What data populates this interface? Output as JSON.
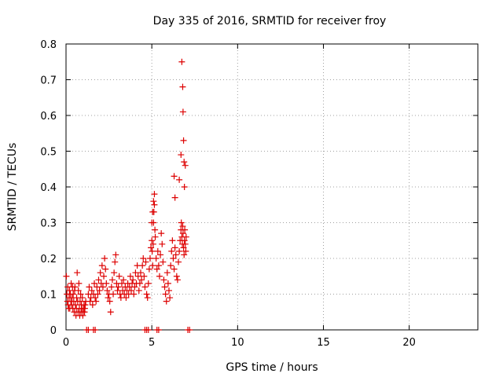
{
  "chart_data": {
    "type": "scatter",
    "title": "Day 335 of 2016, SRMTID for receiver froy",
    "xlabel": "GPS time / hours",
    "ylabel": "SRMTID / TECUs",
    "xlim": [
      0,
      24
    ],
    "ylim": [
      0,
      0.8
    ],
    "xticks": [
      0,
      5,
      10,
      15,
      20
    ],
    "yticks": [
      0,
      0.1,
      0.2,
      0.3,
      0.4,
      0.5,
      0.6,
      0.7,
      0.8
    ],
    "xtick_labels": [
      "0",
      "5",
      "10",
      "15",
      "20"
    ],
    "ytick_labels": [
      "0",
      "0.1",
      "0.2",
      "0.3",
      "0.4",
      "0.5",
      "0.6",
      "0.7",
      "0.8"
    ],
    "grid": true,
    "marker": "+",
    "color": "#dd0000",
    "series": [
      {
        "name": "SRMTID",
        "x": [
          0.02,
          0.05,
          0.08,
          0.1,
          0.12,
          0.15,
          0.18,
          0.2,
          0.22,
          0.25,
          0.28,
          0.3,
          0.33,
          0.35,
          0.38,
          0.4,
          0.42,
          0.45,
          0.48,
          0.5,
          0.52,
          0.55,
          0.58,
          0.6,
          0.62,
          0.65,
          0.68,
          0.7,
          0.72,
          0.75,
          0.78,
          0.8,
          0.82,
          0.85,
          0.88,
          0.9,
          0.92,
          0.95,
          0.98,
          1.0,
          1.02,
          1.05,
          1.08,
          1.1,
          1.12,
          1.15,
          1.3,
          1.35,
          1.4,
          1.45,
          1.5,
          1.55,
          1.6,
          1.65,
          1.7,
          1.75,
          1.8,
          1.85,
          1.9,
          1.95,
          2.0,
          2.05,
          2.1,
          2.15,
          2.2,
          2.25,
          2.3,
          2.35,
          2.4,
          2.45,
          2.5,
          2.55,
          2.6,
          2.65,
          2.7,
          2.75,
          2.8,
          2.85,
          2.9,
          2.95,
          3.0,
          3.05,
          3.1,
          3.15,
          3.2,
          3.25,
          3.3,
          3.35,
          3.4,
          3.45,
          3.5,
          3.55,
          3.6,
          3.65,
          3.7,
          3.75,
          3.8,
          3.85,
          3.9,
          3.95,
          4.0,
          4.05,
          4.1,
          4.15,
          4.2,
          4.25,
          4.3,
          4.35,
          4.4,
          4.45,
          4.5,
          4.55,
          4.6,
          4.65,
          4.7,
          4.75,
          4.8,
          4.85,
          4.9,
          4.95,
          5.0,
          5.02,
          5.05,
          5.08,
          5.1,
          5.12,
          5.15,
          5.18,
          5.2,
          5.25,
          5.3,
          5.35,
          5.4,
          5.45,
          5.5,
          5.55,
          5.6,
          5.65,
          5.7,
          5.75,
          5.8,
          5.85,
          5.9,
          5.95,
          6.0,
          6.05,
          6.1,
          6.15,
          6.2,
          6.25,
          6.3,
          6.35,
          6.4,
          6.45,
          6.5,
          6.55,
          6.6,
          6.65,
          6.7,
          6.72,
          6.75,
          6.78,
          6.8,
          6.82,
          6.85,
          6.88,
          6.9,
          6.92,
          6.95,
          6.98,
          7.0,
          5.0,
          5.05,
          5.1,
          5.15,
          6.3,
          6.35,
          6.6,
          6.7,
          6.75,
          6.8,
          6.82,
          6.85,
          6.88,
          6.9,
          6.95,
          1.2,
          1.3,
          1.6,
          1.7,
          4.6,
          4.7,
          4.8,
          5.3,
          5.4,
          7.1,
          7.2
        ],
        "y": [
          0.15,
          0.1,
          0.08,
          0.12,
          0.07,
          0.06,
          0.09,
          0.11,
          0.06,
          0.1,
          0.08,
          0.13,
          0.07,
          0.09,
          0.12,
          0.06,
          0.1,
          0.08,
          0.05,
          0.11,
          0.12,
          0.07,
          0.04,
          0.06,
          0.09,
          0.16,
          0.08,
          0.05,
          0.11,
          0.13,
          0.06,
          0.04,
          0.08,
          0.1,
          0.05,
          0.07,
          0.06,
          0.09,
          0.04,
          0.05,
          0.06,
          0.07,
          0.05,
          0.06,
          0.07,
          0.08,
          0.1,
          0.12,
          0.08,
          0.09,
          0.11,
          0.07,
          0.1,
          0.13,
          0.09,
          0.08,
          0.12,
          0.1,
          0.14,
          0.11,
          0.16,
          0.13,
          0.18,
          0.12,
          0.15,
          0.2,
          0.17,
          0.13,
          0.11,
          0.09,
          0.1,
          0.08,
          0.05,
          0.12,
          0.14,
          0.1,
          0.16,
          0.19,
          0.21,
          0.13,
          0.11,
          0.12,
          0.15,
          0.1,
          0.09,
          0.13,
          0.11,
          0.14,
          0.1,
          0.12,
          0.09,
          0.11,
          0.13,
          0.1,
          0.12,
          0.15,
          0.11,
          0.13,
          0.14,
          0.1,
          0.12,
          0.16,
          0.13,
          0.18,
          0.15,
          0.11,
          0.13,
          0.16,
          0.14,
          0.18,
          0.2,
          0.15,
          0.12,
          0.19,
          0.1,
          0.09,
          0.13,
          0.17,
          0.2,
          0.23,
          0.25,
          0.22,
          0.18,
          0.24,
          0.3,
          0.33,
          0.35,
          0.28,
          0.26,
          0.2,
          0.17,
          0.22,
          0.18,
          0.15,
          0.21,
          0.27,
          0.24,
          0.19,
          0.14,
          0.12,
          0.1,
          0.08,
          0.16,
          0.13,
          0.11,
          0.09,
          0.18,
          0.22,
          0.25,
          0.2,
          0.17,
          0.23,
          0.21,
          0.15,
          0.14,
          0.19,
          0.22,
          0.25,
          0.28,
          0.3,
          0.26,
          0.24,
          0.29,
          0.27,
          0.23,
          0.21,
          0.25,
          0.28,
          0.24,
          0.22,
          0.26,
          0.3,
          0.33,
          0.36,
          0.38,
          0.43,
          0.37,
          0.42,
          0.49,
          0.75,
          0.68,
          0.61,
          0.53,
          0.47,
          0.4,
          0.46,
          0.0,
          0.0,
          0.0,
          0.0,
          0.0,
          0.0,
          0.0,
          0.0,
          0.0,
          0.0,
          0.0
        ]
      }
    ]
  }
}
